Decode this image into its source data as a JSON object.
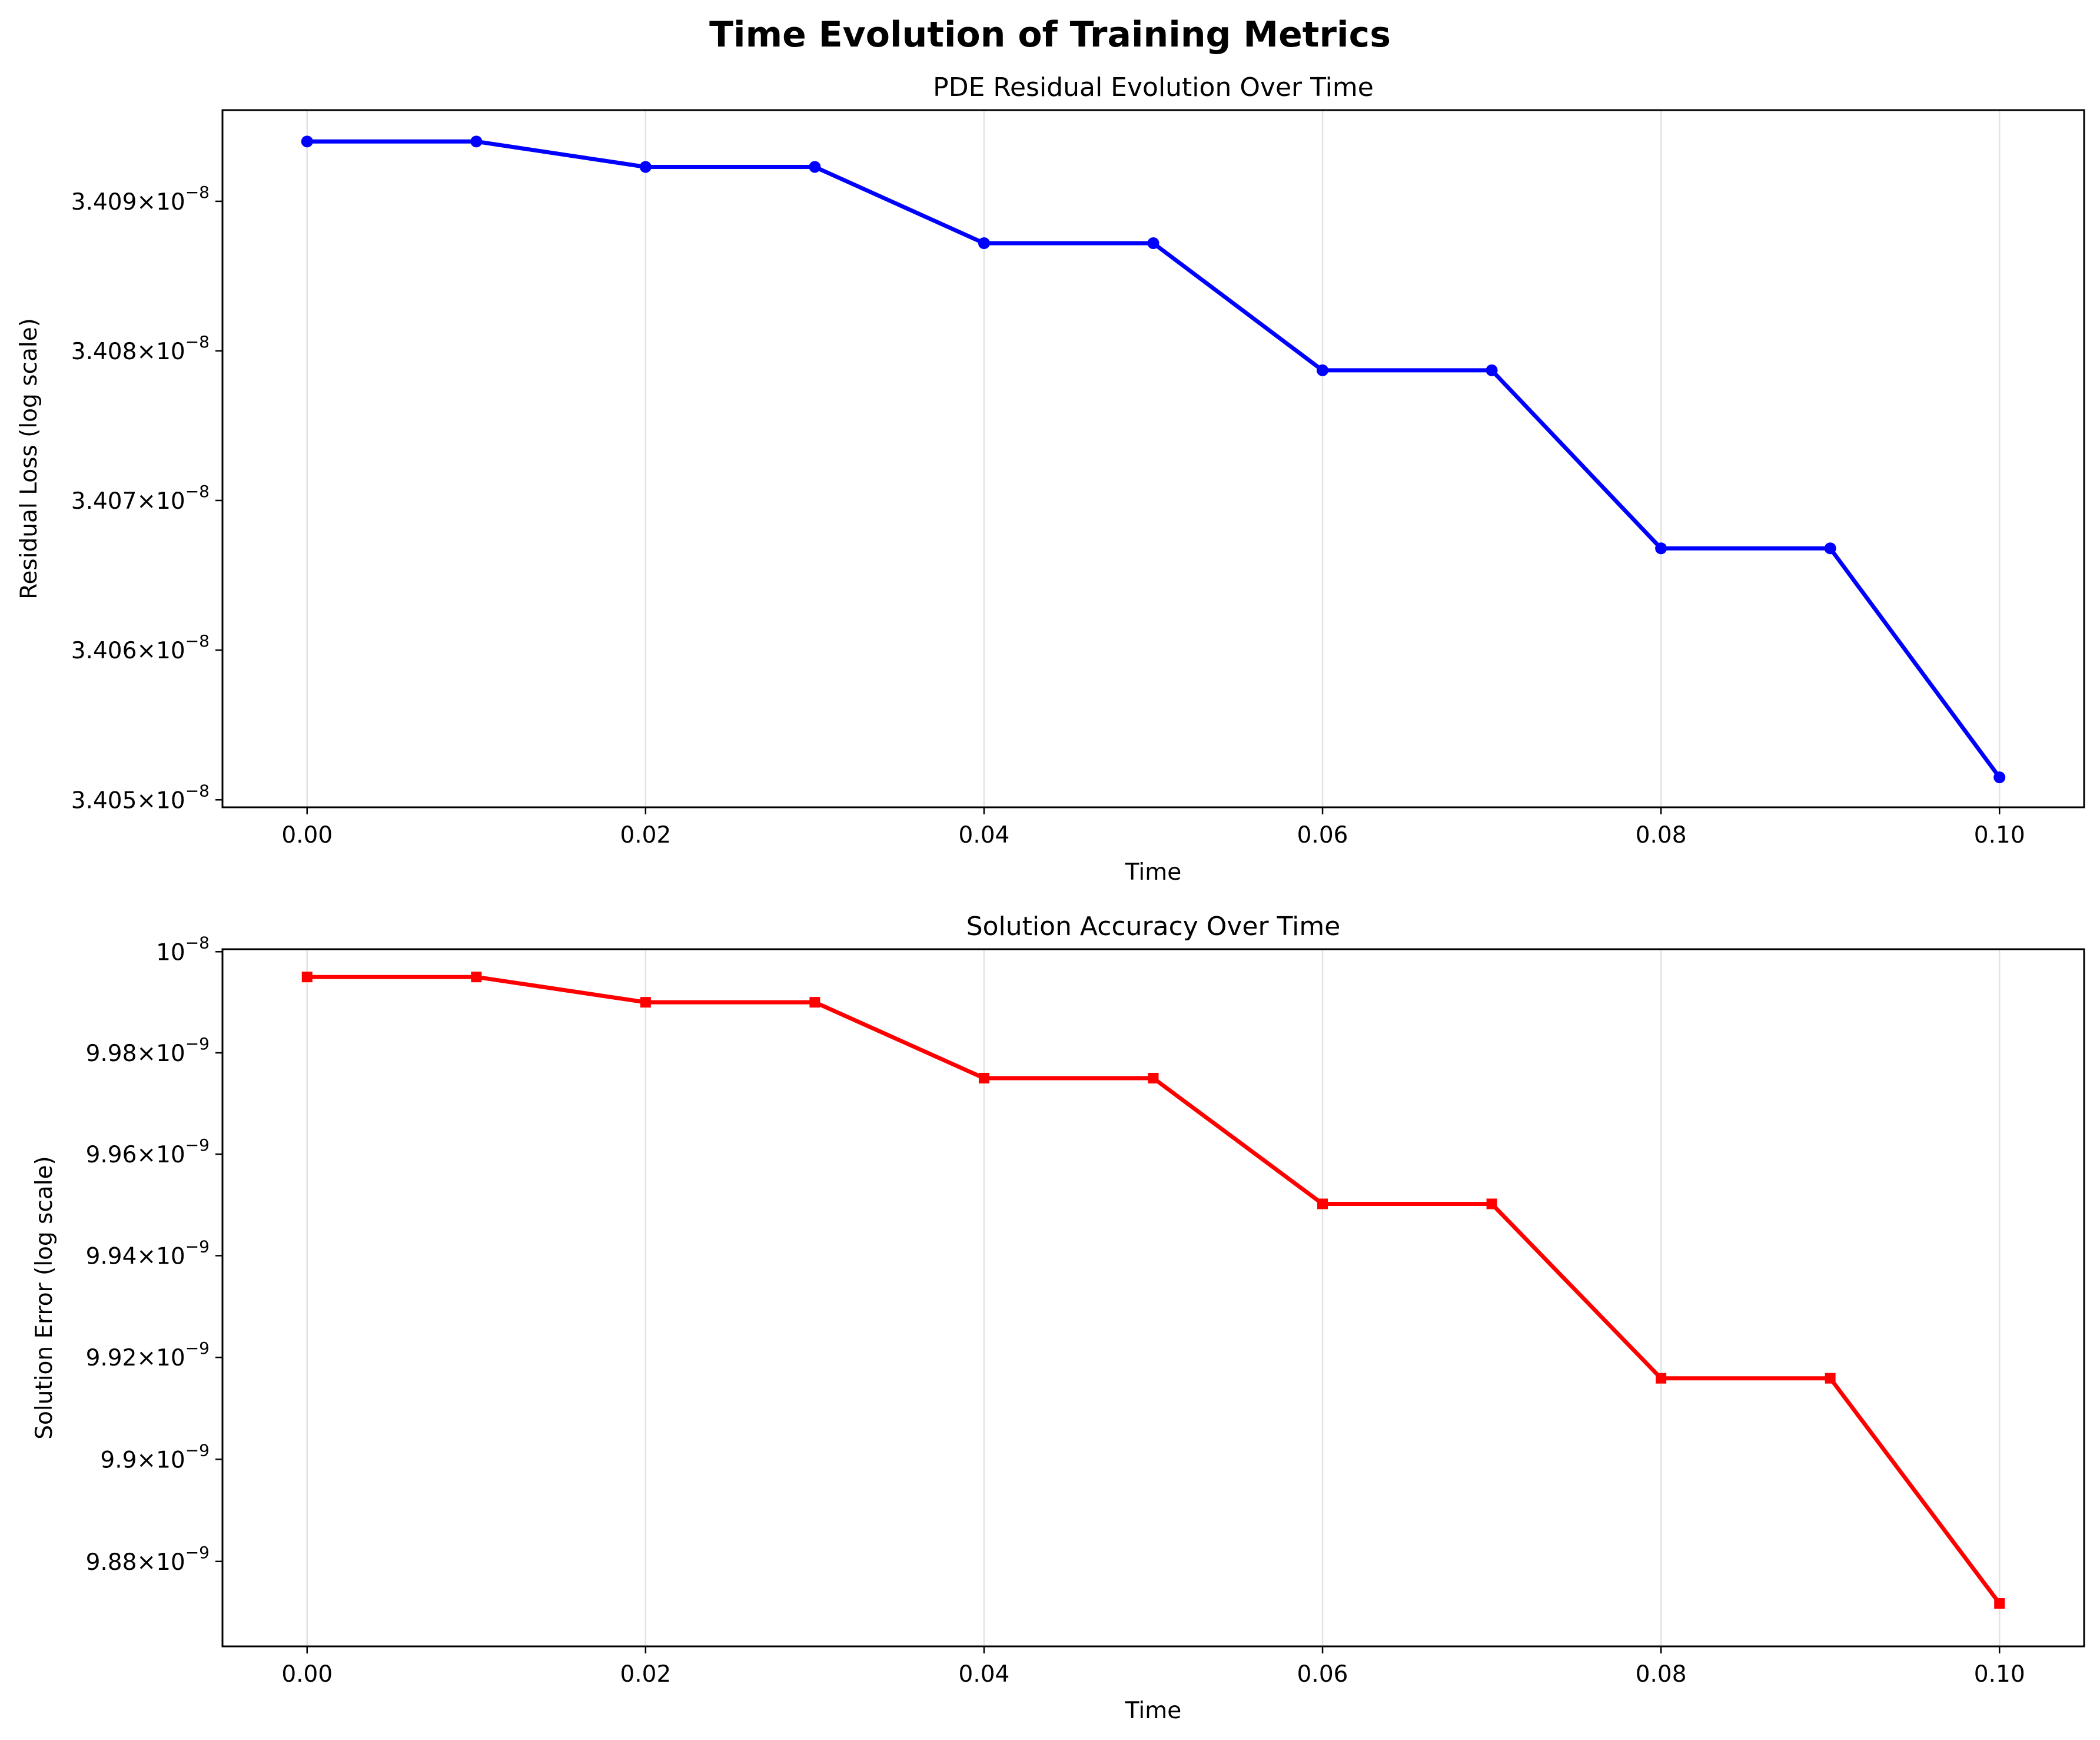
{
  "title": "Time Evolution of Training Metrics",
  "chart_data": [
    {
      "type": "line",
      "title": "PDE Residual Evolution Over Time",
      "xlabel": "Time",
      "ylabel": "Residual Loss (log scale)",
      "yscale": "log",
      "grid": "x-only",
      "color": "#0000ff",
      "marker": "circle",
      "x": [
        0.0,
        0.01,
        0.02,
        0.03,
        0.04,
        0.05,
        0.06,
        0.07,
        0.08,
        0.09,
        0.1
      ],
      "y": [
        3.4094e-08,
        3.4094e-08,
        3.40923e-08,
        3.40923e-08,
        3.40872e-08,
        3.40872e-08,
        3.40787e-08,
        3.40787e-08,
        3.40668e-08,
        3.40668e-08,
        3.40515e-08
      ],
      "xlim": [
        -0.005,
        0.105
      ],
      "ylim": [
        3.40495e-08,
        3.40961e-08
      ],
      "xticks": [
        0.0,
        0.02,
        0.04,
        0.06,
        0.08,
        0.1
      ],
      "xtick_labels": [
        "0.00",
        "0.02",
        "0.04",
        "0.06",
        "0.08",
        "0.10"
      ],
      "yticks": [
        3.405e-08,
        3.406e-08,
        3.407e-08,
        3.408e-08,
        3.409e-08
      ],
      "ytick_labels": [
        {
          "mantissa": "3.405",
          "exponent": "−8"
        },
        {
          "mantissa": "3.406",
          "exponent": "−8"
        },
        {
          "mantissa": "3.407",
          "exponent": "−8"
        },
        {
          "mantissa": "3.408",
          "exponent": "−8"
        },
        {
          "mantissa": "3.409",
          "exponent": "−8"
        }
      ]
    },
    {
      "type": "line",
      "title": "Solution Accuracy Over Time",
      "xlabel": "Time",
      "ylabel": "Solution Error (log scale)",
      "yscale": "log",
      "grid": "x-only",
      "color": "#ff0000",
      "marker": "square",
      "x": [
        0.0,
        0.01,
        0.02,
        0.03,
        0.04,
        0.05,
        0.06,
        0.07,
        0.08,
        0.09,
        0.1
      ],
      "y": [
        9.995e-09,
        9.995e-09,
        9.99e-09,
        9.99e-09,
        9.975e-09,
        9.975e-09,
        9.9502e-09,
        9.9502e-09,
        9.9159e-09,
        9.9159e-09,
        9.8718e-09
      ],
      "xlim": [
        -0.005,
        0.105
      ],
      "ylim": [
        9.8634e-09,
        1.00005e-08
      ],
      "xticks": [
        0.0,
        0.02,
        0.04,
        0.06,
        0.08,
        0.1
      ],
      "xtick_labels": [
        "0.00",
        "0.02",
        "0.04",
        "0.06",
        "0.08",
        "0.10"
      ],
      "yticks": [
        9.88e-09,
        9.9e-09,
        9.92e-09,
        9.94e-09,
        9.96e-09,
        9.98e-09,
        1e-08
      ],
      "ytick_labels": [
        {
          "mantissa": "9.88",
          "exponent": "−9"
        },
        {
          "mantissa": "9.9",
          "exponent": "−9"
        },
        {
          "mantissa": "9.92",
          "exponent": "−9"
        },
        {
          "mantissa": "9.94",
          "exponent": "−9"
        },
        {
          "mantissa": "9.96",
          "exponent": "−9"
        },
        {
          "mantissa": "9.98",
          "exponent": "−9"
        },
        {
          "mantissa": "",
          "exponent": "−8"
        }
      ]
    }
  ]
}
